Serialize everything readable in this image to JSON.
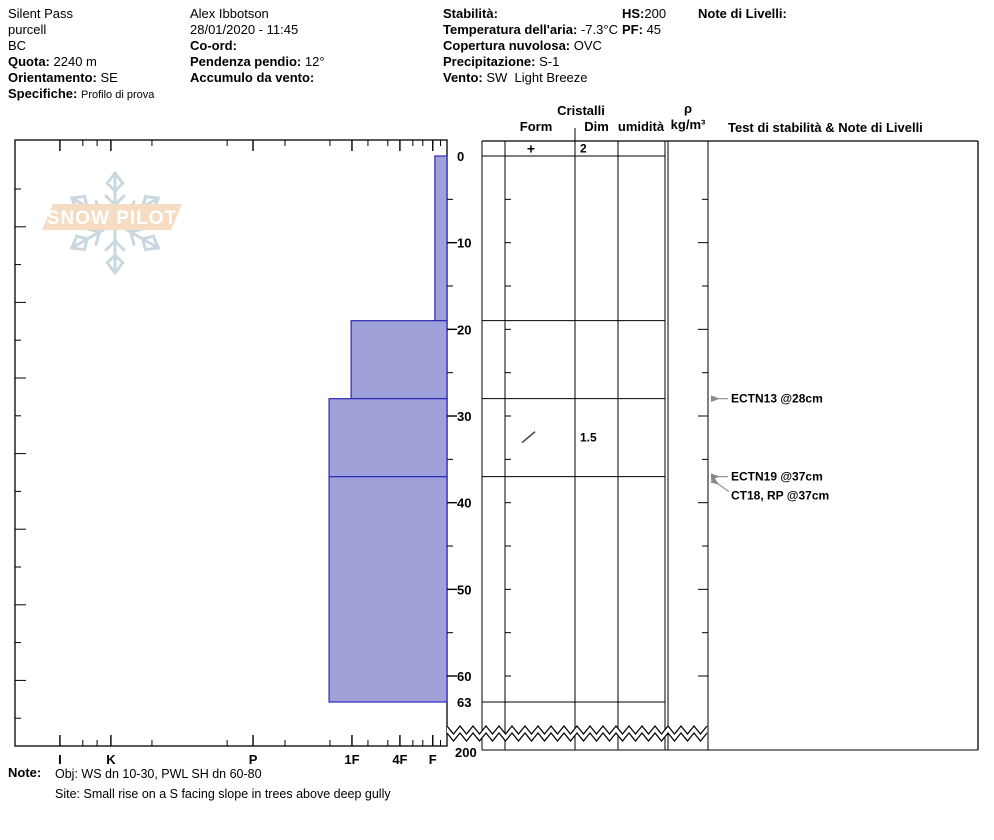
{
  "header": {
    "col1": {
      "location": "Silent Pass",
      "region": "purcell",
      "state": "BC",
      "quota_label": "Quota:",
      "quota_value": "2240 m",
      "orientamento_label": "Orientamento:",
      "orientamento_value": "SE",
      "specifiche_label": "Specifiche:",
      "specifiche_value": "Profilo di prova"
    },
    "col2": {
      "observer": "Alex Ibbotson",
      "datetime": "28/01/2020 - 11:45",
      "coord_label": "Co-ord:",
      "coord_value": "",
      "pendenza_label": "Pendenza pendio:",
      "pendenza_value": "12°",
      "accumulo_label": "Accumulo da vento:",
      "accumulo_value": ""
    },
    "col3": {
      "stabilita_label": "Stabilità:",
      "stabilita_value": "",
      "temp_label": "Temperatura dell'aria:",
      "temp_value": "-7.3°C",
      "copertura_label": "Copertura nuvolosa:",
      "copertura_value": "OVC",
      "precip_label": "Precipitazione:",
      "precip_value": "S-1",
      "vento_label": "Vento:",
      "vento_value": "SW  Light Breeze"
    },
    "col4": {
      "hs_label": "HS:",
      "hs_value": "200",
      "pf_label": "PF:",
      "pf_value": "45"
    },
    "note_livelli_label": "Note di Livelli:"
  },
  "logo": {
    "text": "SNOW PILOT"
  },
  "table_headers": {
    "cristalli": "Cristalli",
    "form": "Form",
    "dim": "Dim",
    "umidita": "umidità",
    "rho": "ρ",
    "rho_unit": "kg/m³",
    "tests": "Test di stabilità & Note di Livelli"
  },
  "notes": {
    "label": "Note:",
    "line1": "Obj: WS dn 10-30, PWL SH dn 60-80",
    "line2": "Site: Small rise on a S facing slope in trees above deep gully"
  },
  "chart_data": {
    "type": "bar",
    "title": "Snow pit profile — hand hardness vs depth",
    "depth_unit": "cm",
    "depth_ticks": [
      0,
      10,
      20,
      30,
      40,
      50,
      60,
      63
    ],
    "depth_break_label": "200",
    "hardness_axis": {
      "categories": [
        "I",
        "K",
        "P",
        "1F",
        "4F",
        "F"
      ],
      "fractions": [
        0.104,
        0.222,
        0.551,
        0.78,
        0.891,
        0.967
      ],
      "minor_fractions": [
        0.157,
        0.19,
        0.317,
        0.491,
        0.625,
        0.729,
        0.817,
        0.863,
        0.921,
        0.944,
        0.985
      ]
    },
    "layers": [
      {
        "top_cm": 0,
        "bottom_cm": 19,
        "hardness": "F",
        "extent_fraction": 0.972
      },
      {
        "top_cm": 19,
        "bottom_cm": 28,
        "hardness": "1F",
        "extent_fraction": 0.778
      },
      {
        "top_cm": 28,
        "bottom_cm": 37,
        "hardness": "1F+",
        "extent_fraction": 0.727
      },
      {
        "top_cm": 37,
        "bottom_cm": 63,
        "hardness": "1F+",
        "extent_fraction": 0.727
      }
    ],
    "crystals": [
      {
        "at": "surface",
        "form_symbol": "+",
        "dim": "2"
      },
      {
        "layer": "28-37",
        "form_symbol": "/",
        "dim": "1.5"
      }
    ],
    "stability_tests": [
      {
        "label": "ECTN13 @28cm",
        "depth_cm": 28,
        "arrow": "straight"
      },
      {
        "label": "ECTN19 @37cm",
        "depth_cm": 37,
        "arrow": "straight"
      },
      {
        "label": "CT18, RP @37cm",
        "depth_cm": 37,
        "arrow": "diagonal"
      }
    ],
    "colors": {
      "layer_fill": "#a1a1d9",
      "layer_stroke": "#2a2ab8",
      "annotation_arrow": "#8a8a8a",
      "logo_flake": "#c9d7e0",
      "logo_banner": "#f6dcc2"
    }
  }
}
